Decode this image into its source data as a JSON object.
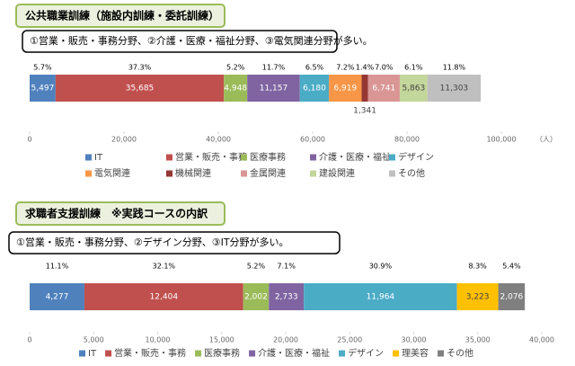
{
  "chart_data": [
    {
      "type": "bar",
      "orientation": "horizontal",
      "stacked": true,
      "title": "公共職業訓練（施設内訓練・委託訓練）",
      "annotation": "①営業・販売・事務分野、②介護・医療・福祉分野、③電気関連分野が多い。",
      "xlabel": "（人）",
      "xlim": [
        0,
        100000
      ],
      "xticks": [
        0,
        {
          "value": 20000,
          "label": "20,000"
        },
        {
          "value": 40000,
          "label": "40,000"
        },
        {
          "value": 60000,
          "label": "60,000"
        },
        {
          "value": 80000,
          "label": "80,000"
        },
        {
          "value": 100000,
          "label": "100,000"
        }
      ],
      "legend": true,
      "series": [
        {
          "name": "IT",
          "color": "#4f81bd",
          "values": [
            5497
          ],
          "value_labels": [
            "5,497"
          ],
          "share_labels": [
            "5.7%"
          ]
        },
        {
          "name": "営業・販売・事務",
          "color": "#c0504d",
          "values": [
            35685
          ],
          "value_labels": [
            "35,685"
          ],
          "share_labels": [
            "37.3%"
          ]
        },
        {
          "name": "医療事務",
          "color": "#9bbb59",
          "values": [
            4948
          ],
          "value_labels": [
            "4,948"
          ],
          "share_labels": [
            "5.2%"
          ]
        },
        {
          "name": "介護・医療・福祉",
          "color": "#8064a2",
          "values": [
            11157
          ],
          "value_labels": [
            "11,157"
          ],
          "share_labels": [
            "11.7%"
          ]
        },
        {
          "name": "デザイン",
          "color": "#4bacc6",
          "values": [
            6180
          ],
          "value_labels": [
            "6,180"
          ],
          "share_labels": [
            "6.5%"
          ]
        },
        {
          "name": "電気関連",
          "color": "#f79646",
          "values": [
            6919
          ],
          "value_labels": [
            "6,919"
          ],
          "share_labels": [
            "7.2%"
          ]
        },
        {
          "name": "機械関連",
          "color": "#953735",
          "values": [
            1341
          ],
          "value_labels": [
            "1,341"
          ],
          "share_labels": [
            "1.4%"
          ]
        },
        {
          "name": "金属関連",
          "color": "#d99694",
          "values": [
            6741
          ],
          "value_labels": [
            "6,741"
          ],
          "share_labels": [
            "7.0%"
          ]
        },
        {
          "name": "建設関連",
          "color": "#c3d69b",
          "values": [
            5863
          ],
          "value_labels": [
            "5,863"
          ],
          "share_labels": [
            "6.1%"
          ]
        },
        {
          "name": "その他",
          "color": "#bfbfbf",
          "values": [
            11303
          ],
          "value_labels": [
            "11,303"
          ],
          "share_labels": [
            "11.8%"
          ]
        }
      ]
    },
    {
      "type": "bar",
      "orientation": "horizontal",
      "stacked": true,
      "title": "求職者支援訓練　※実践コースの内訳",
      "annotation": "①営業・販売・事務分野、②デザイン分野、③IT分野が多い。",
      "xlim": [
        0,
        40000
      ],
      "xticks": [
        0,
        {
          "value": 5000,
          "label": "5,000"
        },
        {
          "value": 10000,
          "label": "10,000"
        },
        {
          "value": 15000,
          "label": "15,000"
        },
        {
          "value": 20000,
          "label": "20,000"
        },
        {
          "value": 25000,
          "label": "25,000"
        },
        {
          "value": 30000,
          "label": "30,000"
        },
        {
          "value": 35000,
          "label": "35,000"
        },
        {
          "value": 40000,
          "label": "40,000"
        }
      ],
      "legend": true,
      "series": [
        {
          "name": "IT",
          "color": "#4f81bd",
          "values": [
            4277
          ],
          "value_labels": [
            "4,277"
          ],
          "share_labels": [
            "11.1%"
          ]
        },
        {
          "name": "営業・販売・事務",
          "color": "#c0504d",
          "values": [
            12404
          ],
          "value_labels": [
            "12,404"
          ],
          "share_labels": [
            "32.1%"
          ]
        },
        {
          "name": "医療事務",
          "color": "#9bbb59",
          "values": [
            2002
          ],
          "value_labels": [
            "2,002"
          ],
          "share_labels": [
            "5.2%"
          ]
        },
        {
          "name": "介護・医療・福祉",
          "color": "#8064a2",
          "values": [
            2733
          ],
          "value_labels": [
            "2,733"
          ],
          "share_labels": [
            "7.1%"
          ]
        },
        {
          "name": "デザイン",
          "color": "#4bacc6",
          "values": [
            11964
          ],
          "value_labels": [
            "11,964"
          ],
          "share_labels": [
            "30.9%"
          ]
        },
        {
          "name": "理美容",
          "color": "#ffc000",
          "values": [
            3223
          ],
          "value_labels": [
            "3,223"
          ],
          "share_labels": [
            "8.3%"
          ]
        },
        {
          "name": "その他",
          "color": "#7f7f7f",
          "values": [
            2076
          ],
          "value_labels": [
            "2,076"
          ],
          "share_labels": [
            "5.4%"
          ]
        }
      ]
    }
  ]
}
